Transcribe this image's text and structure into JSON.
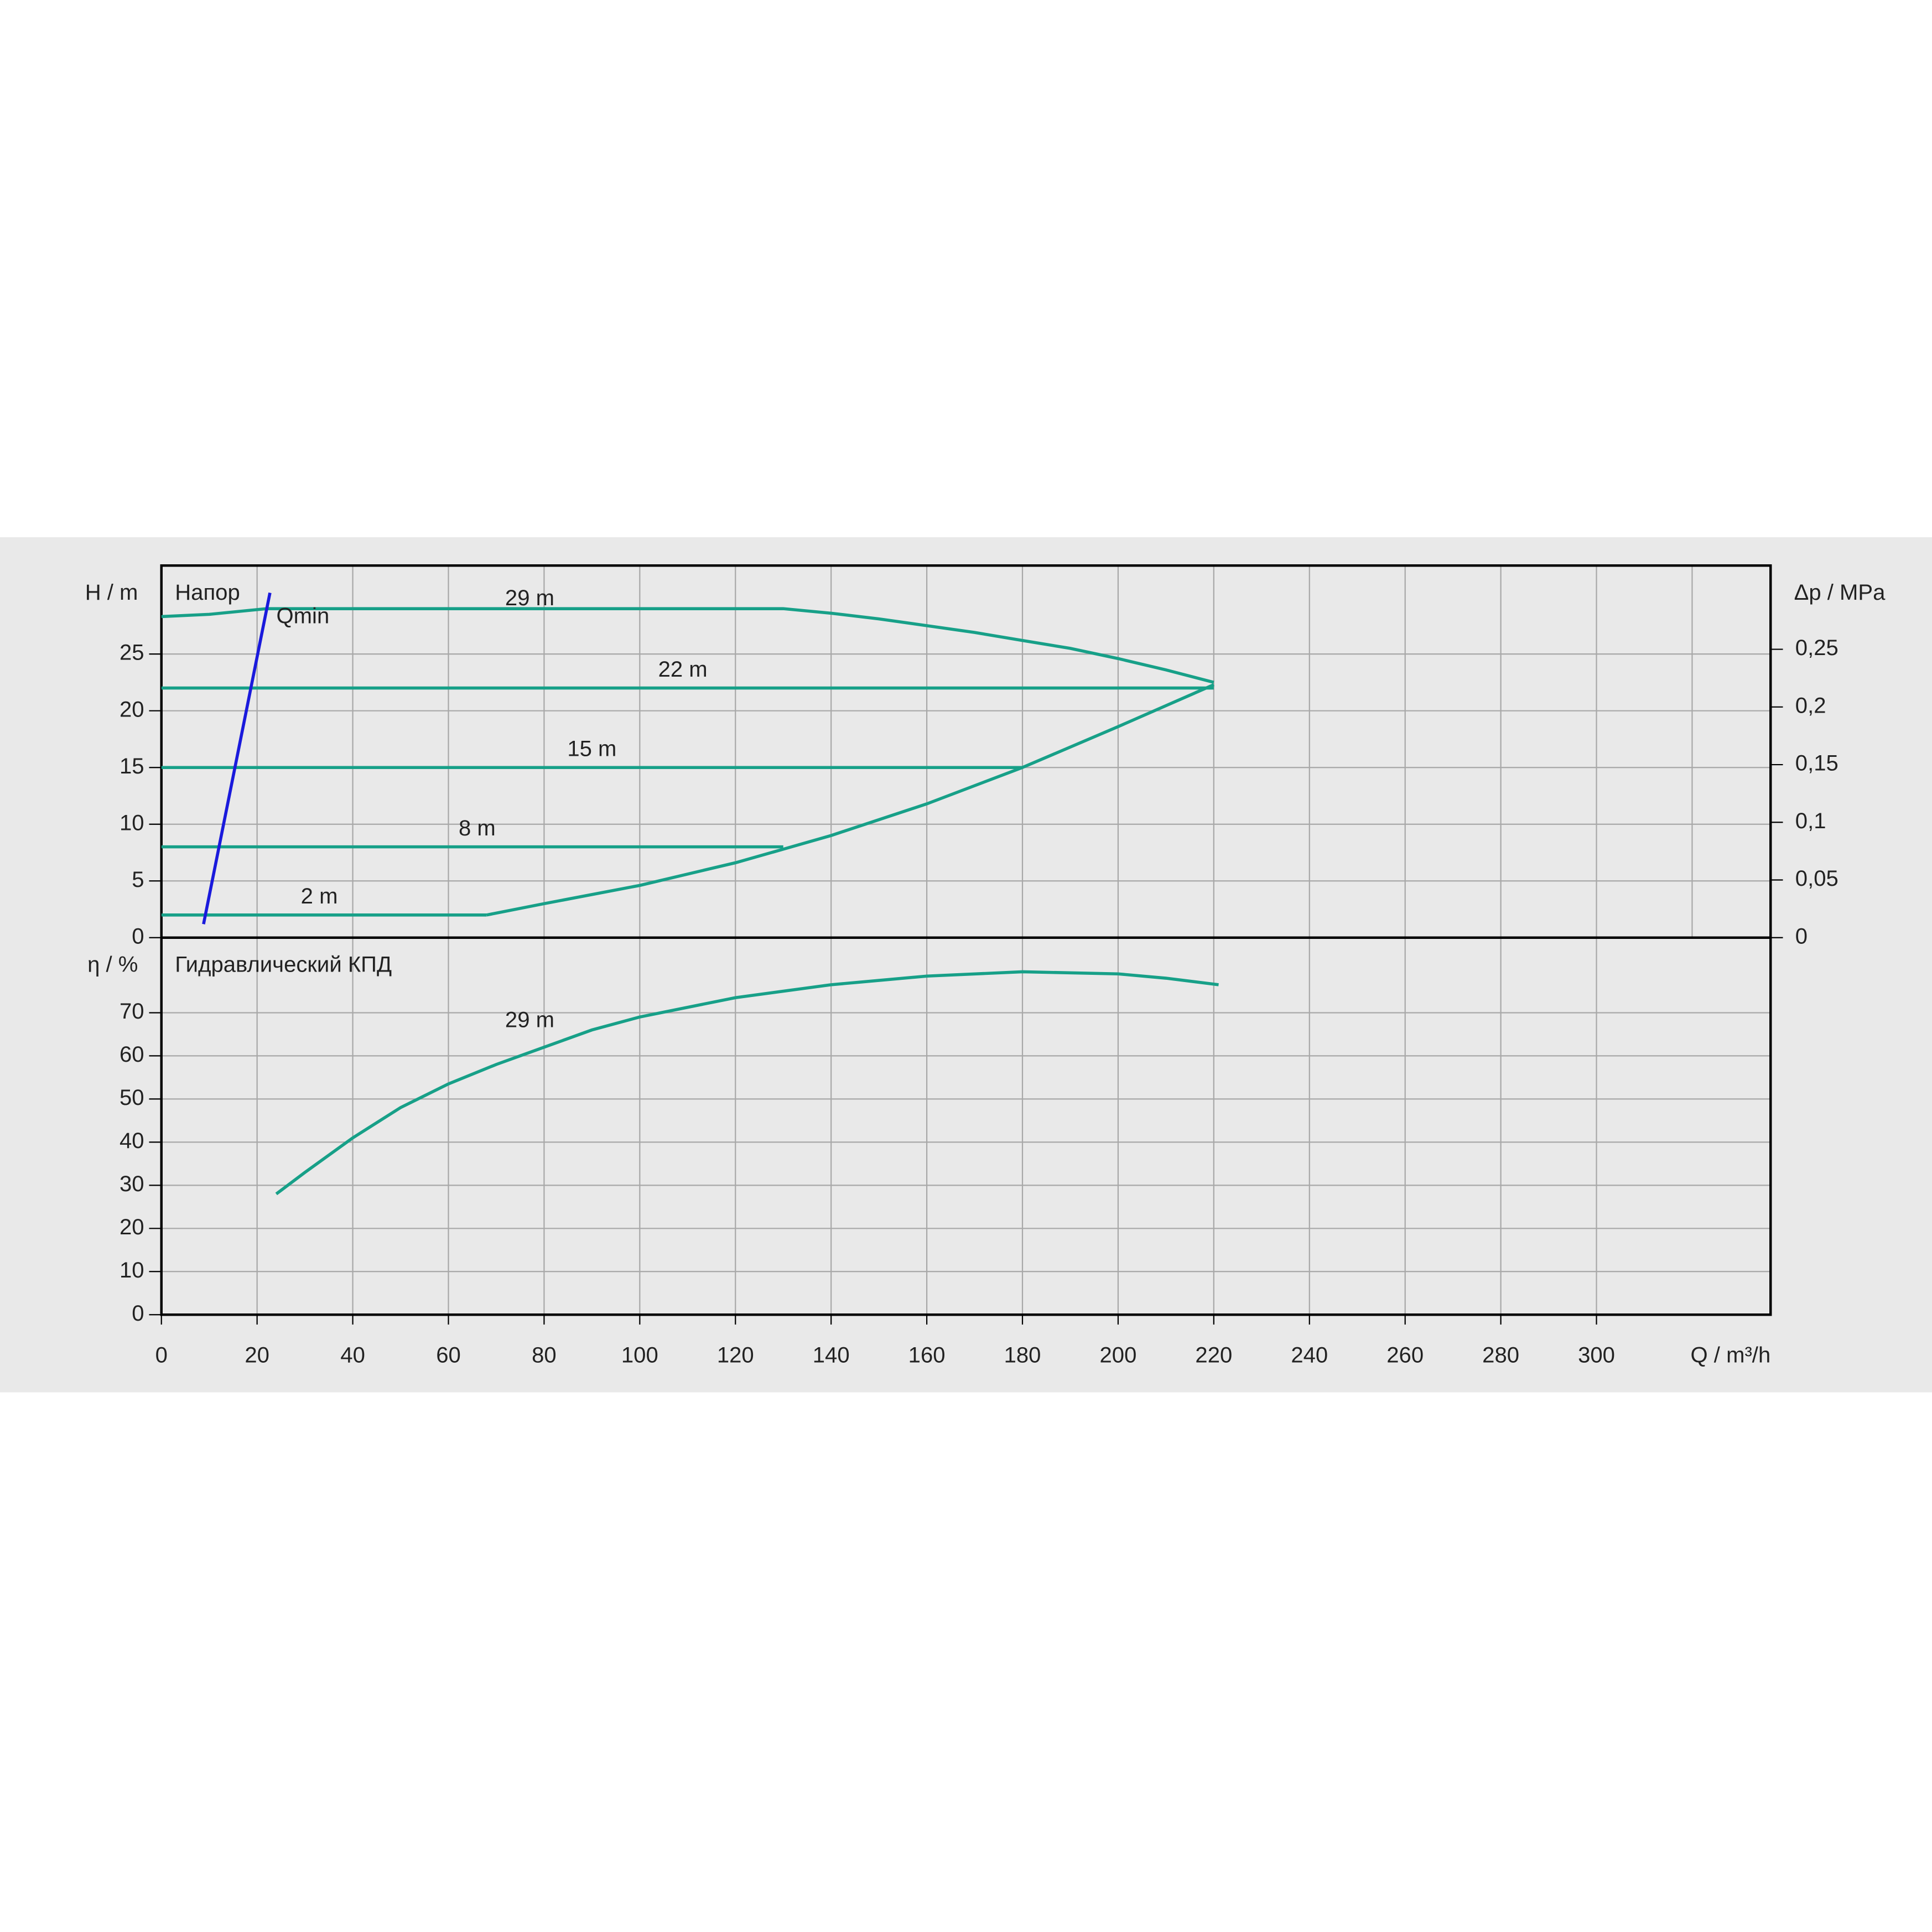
{
  "chart_data": [
    {
      "type": "line",
      "title": "Напор",
      "ylabel": "H / m",
      "y2label": "Δp / MPa",
      "xlim": [
        0,
        336.4
      ],
      "xticks": [
        0,
        20,
        40,
        60,
        80,
        100,
        120,
        140,
        160,
        180,
        200,
        220,
        240,
        260,
        280,
        300,
        320
      ],
      "ylim": [
        0,
        32.8
      ],
      "yticks": [
        0,
        5,
        10,
        15,
        20,
        25
      ],
      "y2lim": [
        0,
        0.3226
      ],
      "y2ticks": [
        0,
        {
          "value": 0.05,
          "label": "0,05"
        },
        {
          "value": 0.1,
          "label": "0,1"
        },
        {
          "value": 0.15,
          "label": "0,15"
        },
        {
          "value": 0.2,
          "label": "0,2"
        },
        {
          "value": 0.25,
          "label": "0,25"
        }
      ],
      "grid": true,
      "series": [
        {
          "name": "29 m",
          "color": "#17a088",
          "x": [
            0,
            10,
            22,
            40,
            80,
            130,
            140,
            150,
            160,
            170,
            180,
            190,
            200,
            210,
            220
          ],
          "values": [
            28.3,
            28.5,
            29,
            29,
            29,
            29,
            28.6,
            28.1,
            27.5,
            26.9,
            26.2,
            25.5,
            24.6,
            23.6,
            22.5
          ]
        },
        {
          "name": "22 m",
          "color": "#17a088",
          "x": [
            0,
            220
          ],
          "values": [
            22,
            22
          ]
        },
        {
          "name": "15 m",
          "color": "#17a088",
          "x": [
            0,
            180
          ],
          "values": [
            15,
            15
          ]
        },
        {
          "name": "8 m",
          "color": "#17a088",
          "x": [
            0,
            130
          ],
          "values": [
            8,
            8
          ]
        },
        {
          "name": "2 m",
          "color": "#17a088",
          "x": [
            0,
            68
          ],
          "values": [
            2,
            2
          ]
        },
        {
          "color": "#17a088",
          "x": [
            68,
            80,
            100,
            120,
            130,
            140,
            160,
            180,
            200,
            220
          ],
          "values": [
            2,
            3,
            4.6,
            6.6,
            7.8,
            9,
            11.8,
            15,
            18.6,
            22.3
          ]
        },
        {
          "name": "Qmin",
          "color": "#1a1adc",
          "x": [
            8.8,
            22.7
          ],
          "values": [
            1.2,
            30.4
          ]
        }
      ]
    },
    {
      "type": "line",
      "title": "Гидравлический КПД",
      "ylabel": "η / %",
      "xlabel": "Q / m³/h",
      "xlim": [
        0,
        336.4
      ],
      "xticks": [
        0,
        20,
        40,
        60,
        80,
        100,
        120,
        140,
        160,
        180,
        200,
        220,
        240,
        260,
        280,
        300
      ],
      "ylim": [
        0,
        87.4
      ],
      "yticks": [
        0,
        10,
        20,
        30,
        40,
        50,
        60,
        70
      ],
      "grid": true,
      "series": [
        {
          "name": "29 m",
          "color": "#17a088",
          "x": [
            24,
            30,
            40,
            50,
            60,
            70,
            80,
            90,
            100,
            120,
            140,
            160,
            180,
            200,
            210,
            221
          ],
          "values": [
            28,
            33,
            41,
            48,
            53.5,
            58,
            62,
            66,
            69,
            73.5,
            76.5,
            78.5,
            79.5,
            79,
            78,
            76.5
          ]
        }
      ]
    }
  ]
}
